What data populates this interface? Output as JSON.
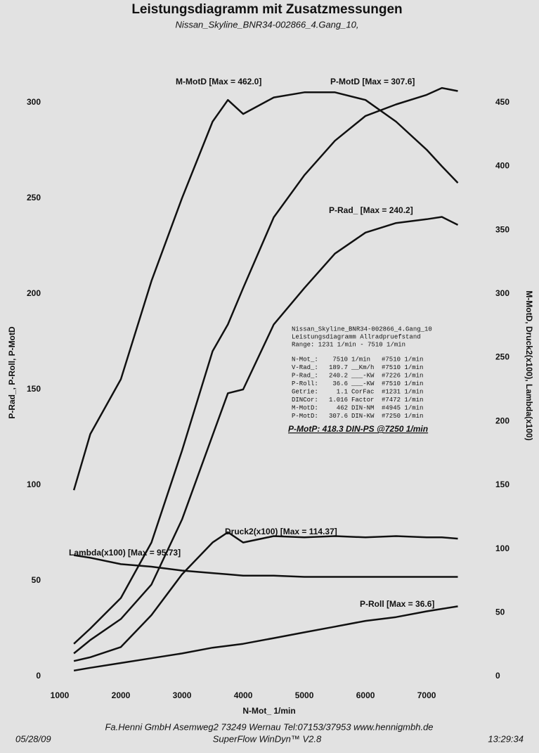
{
  "chart_data": {
    "type": "line",
    "title": "Leistungsdiagramm mit Zusatzmessungen",
    "subtitle": "Nissan_Skyline_BNR34-002866_4.Gang_10,",
    "x_label": "N-Mot_ 1/min",
    "y_label": "P-Rad_, P-Roll, P-MotD",
    "y2_label": "M-MotD, Druck2(x100), Lambda(x100)",
    "x": [
      1231,
      1500,
      2000,
      2500,
      3000,
      3500,
      3750,
      4000,
      4500,
      5000,
      5500,
      6000,
      6500,
      7000,
      7250,
      7510
    ],
    "xlim": [
      1000,
      7700
    ],
    "xticks": [
      1000,
      2000,
      3000,
      4000,
      5000,
      6000,
      7000
    ],
    "ylim": [
      0,
      315
    ],
    "yticks": [
      0,
      50,
      100,
      150,
      200,
      250,
      300
    ],
    "y2lim": [
      0,
      472.5
    ],
    "y2ticks": [
      0,
      50,
      100,
      150,
      200,
      250,
      300,
      350,
      400,
      450
    ],
    "grid": false,
    "series": [
      {
        "name": "M-MotD [Max = 462.0]",
        "color": "#111111",
        "axis": "y2",
        "values": [
          146,
          190,
          233,
          310,
          375,
          435,
          452,
          441,
          454,
          458,
          458,
          452,
          435,
          413,
          400,
          387
        ]
      },
      {
        "name": "P-MotD [Max = 307.6]",
        "color": "#111111",
        "values": [
          17,
          25,
          41,
          70,
          118,
          170,
          184,
          203,
          240,
          262,
          280,
          293,
          299,
          304,
          307.6,
          306
        ]
      },
      {
        "name": "P-Rad_ [Max = 240.2]",
        "color": "#111111",
        "values": [
          12,
          19,
          30,
          48,
          82,
          126,
          148,
          150,
          184,
          203,
          221,
          232,
          237,
          239,
          240.2,
          236
        ]
      },
      {
        "name": "P-Roll [Max = 36.6]",
        "color": "#111111",
        "values": [
          3,
          4.5,
          7,
          9.5,
          12,
          15,
          16,
          17,
          20,
          23,
          26,
          29,
          31,
          34,
          35.3,
          36.6
        ]
      },
      {
        "name": "Druck2(x100) [Max = 114.37]",
        "color": "#111111",
        "axis": "y2",
        "values": [
          12,
          15,
          23,
          48,
          80,
          105,
          113,
          105,
          110,
          109,
          110,
          109,
          110,
          109,
          109,
          108
        ]
      },
      {
        "name": "Lambda(x100) [Max = 95.73]",
        "color": "#111111",
        "axis": "y2",
        "values": [
          95,
          93,
          88,
          86,
          83,
          81,
          80,
          79,
          79,
          78,
          78,
          78,
          78,
          78,
          78,
          78
        ]
      }
    ],
    "info_box": {
      "lines": [
        "Nissan_Skyline_BNR34-002866_4.Gang_10",
        "Leistungsdiagramm Allradpruefstand",
        "Range: 1231 1/min - 7510 1/min"
      ],
      "rows": [
        [
          "N-Mot_:",
          "7510",
          "1/min",
          "#7510 1/min"
        ],
        [
          "V-Rad_:",
          "189.7",
          "__Km/h",
          "#7510 1/min"
        ],
        [
          "P-Rad_:",
          "240.2",
          "___-KW",
          "#7226 1/min"
        ],
        [
          "P-Roll:",
          "36.6",
          "___-KW",
          "#7510 1/min"
        ],
        [
          "Getrie:",
          "1.1",
          "CorFac",
          "#1231 1/min"
        ],
        [
          "DINCor:",
          "1.016",
          "Factor",
          "#7472 1/min"
        ],
        [
          "M-MotD:",
          "462",
          "DIN-NM",
          "#4945 1/min"
        ],
        [
          "P-MotD:",
          "307.6",
          "DIN-KW",
          "#7250 1/min"
        ]
      ],
      "summary": "P-MotP:  418.3 DIN-PS @7250 1/min"
    },
    "footer": {
      "company": "Fa.Henni GmbH   Asemweg2   73249 Wernau   Tel:07153/37953   www.hennigmbh.de",
      "date": "05/28/09",
      "software": "SuperFlow WinDyn™ V2.8",
      "time": "13:29:34"
    }
  }
}
